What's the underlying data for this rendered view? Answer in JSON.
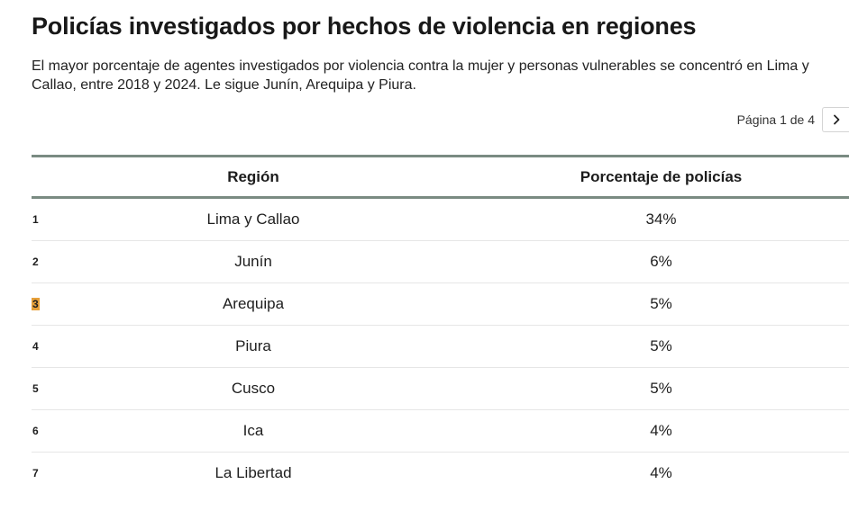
{
  "title": "Policías investigados por hechos de violencia en regiones",
  "subtitle": "El mayor porcentaje de agentes investigados por violencia contra la mujer y personas vulnerables se concentró en Lima y Callao, entre 2018 y 2024. Le sigue Junín, Arequipa y Piura.",
  "pagination": {
    "label": "Página 1 de 4",
    "next_icon": "chevron-right-icon"
  },
  "chart_data": {
    "type": "table",
    "columns": [
      "Región",
      "Porcentaje de policías"
    ],
    "rows": [
      {
        "rank": "1",
        "region": "Lima y Callao",
        "pct": "34%"
      },
      {
        "rank": "2",
        "region": "Junín",
        "pct": "6%"
      },
      {
        "rank": "3",
        "region": "Arequipa",
        "pct": "5%"
      },
      {
        "rank": "4",
        "region": "Piura",
        "pct": "5%"
      },
      {
        "rank": "5",
        "region": "Cusco",
        "pct": "5%"
      },
      {
        "rank": "6",
        "region": "Ica",
        "pct": "4%"
      },
      {
        "rank": "7",
        "region": "La Libertad",
        "pct": "4%"
      }
    ]
  },
  "colors": {
    "header_rule": "#7a8b82",
    "rank_highlight": "#e6a03a"
  }
}
